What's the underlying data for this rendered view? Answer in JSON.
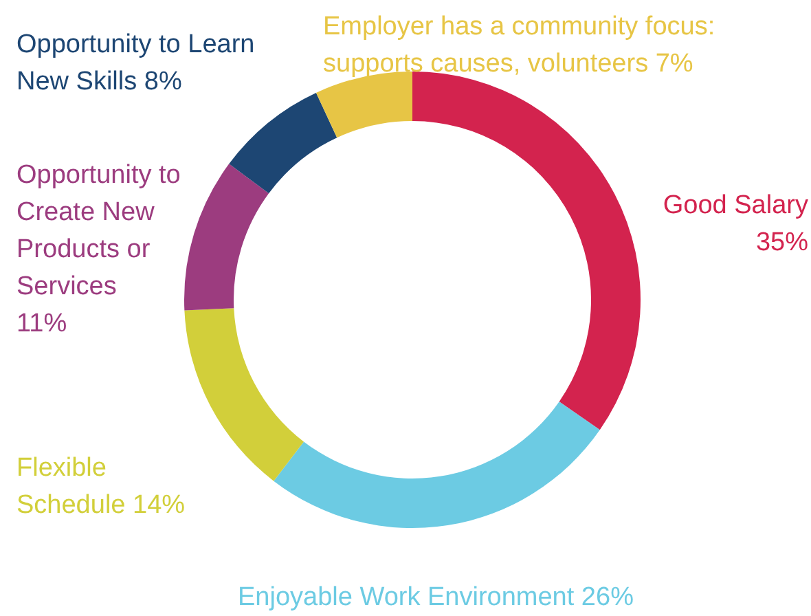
{
  "chart_data": {
    "type": "donut",
    "categories": [
      "Good Salary",
      "Enjoyable Work Environment",
      "Flexible Schedule",
      "Opportunity to Create New Products or Services",
      "Opportunity to Learn New Skills",
      "Employer has a community focus: supports causes, volunteers"
    ],
    "values": [
      35,
      26,
      14,
      11,
      8,
      7
    ],
    "colors": [
      "#d3234e",
      "#6ccbe3",
      "#d2cf3a",
      "#9c3c7f",
      "#1d4673",
      "#e7c545"
    ],
    "value_labels": [
      "35%",
      "26%",
      "14%",
      "11%",
      "8%",
      "7%"
    ]
  }
}
